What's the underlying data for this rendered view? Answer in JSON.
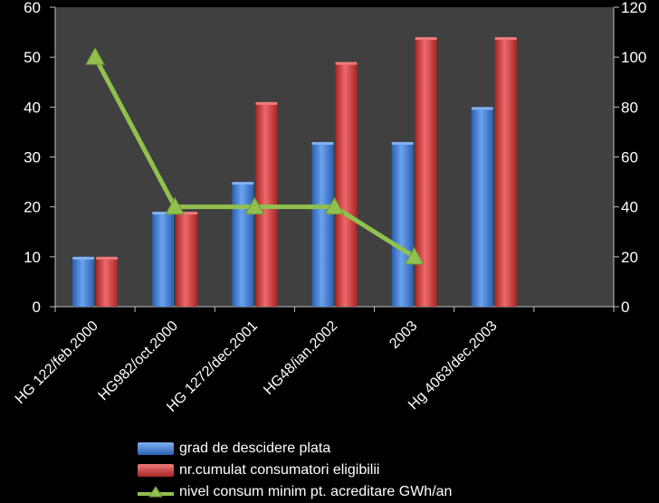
{
  "chart_data": {
    "type": "bar",
    "categories": [
      "HG 122/feb.2000",
      "HG982/oct.2000",
      "HG 1272/dec.2001",
      "HG48/ian.2002",
      "2003",
      "Hg 4063/dec.2003",
      ""
    ],
    "series": [
      {
        "name": "grad de descidere plata",
        "kind": "bar",
        "axis": "left",
        "color": "#3f7fd6",
        "values": [
          10,
          19,
          25,
          33,
          33,
          40,
          null
        ]
      },
      {
        "name": "nr.cumulat consumatori eligibilii",
        "kind": "bar",
        "axis": "left",
        "color": "#d03a3a",
        "values": [
          10,
          19,
          41,
          49,
          54,
          54,
          null
        ]
      },
      {
        "name": "nivel consum minim pt. acreditare GWh/an",
        "kind": "line",
        "axis": "right",
        "color": "#92c04e",
        "values": [
          100,
          40,
          40,
          40,
          20,
          null,
          null
        ]
      }
    ],
    "y_left": {
      "min": 0,
      "max": 60,
      "ticks": [
        0,
        10,
        20,
        30,
        40,
        50,
        60
      ]
    },
    "y_right": {
      "min": 0,
      "max": 120,
      "ticks": [
        0,
        20,
        40,
        60,
        80,
        100,
        120
      ]
    },
    "grid": false,
    "legend_position": "bottom",
    "plot_background": "#404040"
  }
}
